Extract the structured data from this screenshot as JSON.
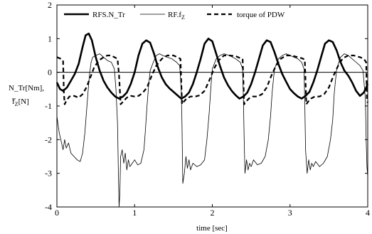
{
  "chart_data": {
    "type": "line",
    "title": "",
    "xlabel": "time [sec]",
    "ylabel_lines": [
      "N_Tr[Nm],",
      "f_Z[N]"
    ],
    "xlim": [
      0,
      4
    ],
    "ylim": [
      -4,
      2
    ],
    "xticks": [
      0,
      1,
      2,
      3,
      4
    ],
    "yticks": [
      -4,
      -3,
      -2,
      -1,
      0,
      1,
      2
    ],
    "grid": false,
    "zero_line": true,
    "legend_position": "top",
    "series": [
      {
        "name": "RFS.N_Tr",
        "style": "thick-solid",
        "x": [
          0.0,
          0.04,
          0.08,
          0.13,
          0.18,
          0.23,
          0.28,
          0.33,
          0.37,
          0.41,
          0.45,
          0.5,
          0.55,
          0.6,
          0.65,
          0.7,
          0.75,
          0.8,
          0.85,
          0.9,
          0.95,
          1.0,
          1.05,
          1.1,
          1.15,
          1.2,
          1.25,
          1.3,
          1.35,
          1.4,
          1.45,
          1.5,
          1.55,
          1.6,
          1.65,
          1.7,
          1.75,
          1.8,
          1.85,
          1.9,
          1.95,
          2.0,
          2.05,
          2.1,
          2.15,
          2.2,
          2.25,
          2.3,
          2.35,
          2.4,
          2.45,
          2.5,
          2.55,
          2.6,
          2.65,
          2.7,
          2.75,
          2.8,
          2.85,
          2.9,
          2.95,
          3.0,
          3.05,
          3.1,
          3.15,
          3.2,
          3.25,
          3.3,
          3.35,
          3.4,
          3.45,
          3.5,
          3.55,
          3.6,
          3.65,
          3.7,
          3.75,
          3.8,
          3.85,
          3.9,
          3.95,
          4.0
        ],
        "y": [
          -0.3,
          -0.5,
          -0.55,
          -0.45,
          -0.25,
          -0.05,
          0.25,
          0.75,
          1.1,
          1.15,
          0.95,
          0.45,
          0.05,
          -0.25,
          -0.45,
          -0.6,
          -0.72,
          -0.78,
          -0.72,
          -0.6,
          -0.35,
          0.0,
          0.5,
          0.85,
          0.95,
          0.88,
          0.55,
          0.15,
          -0.15,
          -0.35,
          -0.48,
          -0.58,
          -0.68,
          -0.78,
          -0.72,
          -0.6,
          -0.35,
          0.0,
          0.4,
          0.85,
          1.0,
          0.92,
          0.55,
          0.18,
          -0.15,
          -0.38,
          -0.55,
          -0.68,
          -0.78,
          -0.72,
          -0.6,
          -0.35,
          0.0,
          0.4,
          0.8,
          0.95,
          0.9,
          0.6,
          0.25,
          -0.05,
          -0.28,
          -0.5,
          -0.62,
          -0.72,
          -0.78,
          -0.7,
          -0.58,
          -0.3,
          0.05,
          0.45,
          0.85,
          0.95,
          0.9,
          0.65,
          0.3,
          0.05,
          -0.1,
          -0.3,
          -0.55,
          -0.7,
          -0.6,
          -0.35
        ]
      },
      {
        "name": "RF.f_Z",
        "style": "thin-solid",
        "x": [
          0.0,
          0.03,
          0.06,
          0.08,
          0.1,
          0.12,
          0.15,
          0.18,
          0.22,
          0.26,
          0.3,
          0.33,
          0.36,
          0.38,
          0.4,
          0.42,
          0.44,
          0.46,
          0.5,
          0.55,
          0.6,
          0.65,
          0.7,
          0.72,
          0.74,
          0.76,
          0.78,
          0.79,
          0.8,
          0.81,
          0.82,
          0.84,
          0.86,
          0.88,
          0.9,
          0.92,
          0.94,
          0.97,
          1.0,
          1.04,
          1.08,
          1.12,
          1.14,
          1.16,
          1.18,
          1.2,
          1.24,
          1.28,
          1.32,
          1.36,
          1.42,
          1.48,
          1.54,
          1.58,
          1.6,
          1.61,
          1.62,
          1.64,
          1.66,
          1.68,
          1.7,
          1.72,
          1.75,
          1.8,
          1.85,
          1.9,
          1.93,
          1.96,
          1.98,
          2.0,
          2.05,
          2.1,
          2.15,
          2.22,
          2.3,
          2.36,
          2.39,
          2.4,
          2.41,
          2.42,
          2.44,
          2.46,
          2.48,
          2.5,
          2.53,
          2.58,
          2.63,
          2.68,
          2.72,
          2.75,
          2.77,
          2.8,
          2.85,
          2.9,
          2.95,
          3.0,
          3.05,
          3.1,
          3.15,
          3.18,
          3.19,
          3.2,
          3.22,
          3.24,
          3.26,
          3.28,
          3.3,
          3.33,
          3.38,
          3.43,
          3.48,
          3.52,
          3.55,
          3.57,
          3.6,
          3.65,
          3.7,
          3.75,
          3.8,
          3.85,
          3.9,
          3.94,
          3.97,
          3.98,
          3.99,
          4.0
        ],
        "y": [
          -1.3,
          -1.8,
          -2.1,
          -2.3,
          -2.0,
          -2.25,
          -2.1,
          -2.4,
          -2.5,
          -2.6,
          -2.65,
          -2.4,
          -1.8,
          -1.2,
          -0.6,
          -0.05,
          0.3,
          0.45,
          0.5,
          0.55,
          0.45,
          0.35,
          0.3,
          0.2,
          0.1,
          -0.5,
          -1.5,
          -2.8,
          -4.0,
          -3.6,
          -2.5,
          -2.3,
          -2.7,
          -2.4,
          -2.9,
          -2.6,
          -2.8,
          -2.7,
          -2.6,
          -2.75,
          -2.7,
          -2.3,
          -1.7,
          -1.0,
          -0.4,
          0.05,
          0.3,
          0.5,
          0.55,
          0.5,
          0.45,
          0.4,
          0.3,
          0.2,
          -0.5,
          -1.6,
          -3.3,
          -3.0,
          -2.5,
          -2.85,
          -2.6,
          -2.9,
          -2.7,
          -2.8,
          -2.75,
          -2.6,
          -2.0,
          -1.2,
          -0.5,
          0.1,
          0.4,
          0.5,
          0.55,
          0.5,
          0.4,
          0.3,
          0.1,
          -0.8,
          -2.0,
          -3.0,
          -2.6,
          -2.9,
          -2.7,
          -2.8,
          -2.6,
          -2.75,
          -2.7,
          -2.5,
          -2.0,
          -1.3,
          -0.6,
          0.1,
          0.4,
          0.5,
          0.55,
          0.5,
          0.45,
          0.4,
          0.3,
          0.1,
          -0.9,
          -2.3,
          -3.0,
          -2.6,
          -2.9,
          -2.7,
          -2.8,
          -2.65,
          -2.8,
          -2.7,
          -2.5,
          -2.0,
          -1.4,
          -0.6,
          0.1,
          0.45,
          0.55,
          0.5,
          0.4,
          0.3,
          0.2,
          0.05,
          -0.8,
          -2.0,
          -2.8,
          -3.1
        ]
      },
      {
        "name": "torque of PDW",
        "style": "thick-dashed",
        "x": [
          0.0,
          0.05,
          0.08,
          0.09,
          0.1,
          0.12,
          0.16,
          0.22,
          0.28,
          0.33,
          0.38,
          0.43,
          0.48,
          0.54,
          0.6,
          0.65,
          0.7,
          0.74,
          0.78,
          0.8,
          0.82,
          0.86,
          0.9,
          0.95,
          1.0,
          1.05,
          1.1,
          1.16,
          1.22,
          1.28,
          1.35,
          1.42,
          1.5,
          1.55,
          1.59,
          1.61,
          1.63,
          1.67,
          1.72,
          1.78,
          1.84,
          1.9,
          1.96,
          2.02,
          2.08,
          2.15,
          2.22,
          2.3,
          2.36,
          2.39,
          2.41,
          2.43,
          2.47,
          2.52,
          2.58,
          2.64,
          2.7,
          2.76,
          2.82,
          2.88,
          2.95,
          3.02,
          3.1,
          3.15,
          3.19,
          3.21,
          3.23,
          3.27,
          3.32,
          3.38,
          3.44,
          3.5,
          3.56,
          3.62,
          3.68,
          3.75,
          3.82,
          3.9,
          3.95,
          3.98,
          3.99,
          4.0
        ],
        "y": [
          0.45,
          0.4,
          0.35,
          -0.6,
          -0.95,
          -0.85,
          -0.72,
          -0.7,
          -0.75,
          -0.65,
          -0.45,
          -0.15,
          0.15,
          0.35,
          0.45,
          0.5,
          0.5,
          0.45,
          0.4,
          -0.1,
          -0.95,
          -0.85,
          -0.75,
          -0.7,
          -0.72,
          -0.7,
          -0.62,
          -0.45,
          -0.1,
          0.2,
          0.4,
          0.5,
          0.5,
          0.45,
          0.4,
          -0.95,
          -0.88,
          -0.78,
          -0.72,
          -0.72,
          -0.68,
          -0.55,
          -0.25,
          0.1,
          0.35,
          0.5,
          0.5,
          0.48,
          0.42,
          0.4,
          -0.95,
          -0.88,
          -0.78,
          -0.72,
          -0.72,
          -0.65,
          -0.45,
          -0.1,
          0.2,
          0.4,
          0.5,
          0.5,
          0.45,
          0.42,
          0.38,
          -0.95,
          -0.88,
          -0.78,
          -0.72,
          -0.72,
          -0.65,
          -0.45,
          -0.1,
          0.2,
          0.42,
          0.5,
          0.5,
          0.45,
          0.4,
          0.3,
          -0.8,
          -0.9
        ]
      }
    ]
  },
  "ylabel_subscript": "Z"
}
